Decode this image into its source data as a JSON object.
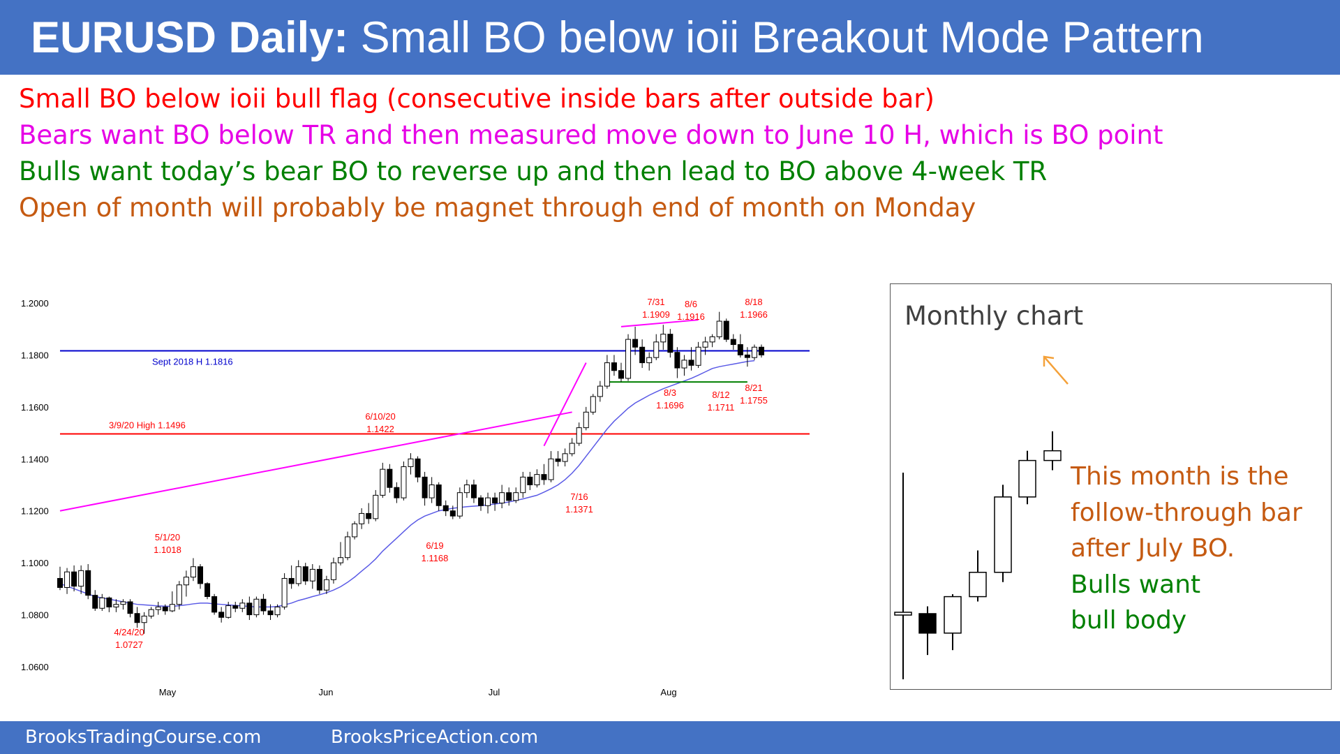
{
  "title": {
    "bold": "EURUSD Daily:",
    "rest": " Small BO below ioii Breakout Mode Pattern"
  },
  "bullets": [
    {
      "text": "Small BO below ioii bull flag (consecutive inside bars after outside bar)",
      "color": "#ff0000"
    },
    {
      "text": "Bears want BO below TR and then measured move down to June 10 H, which is BO point",
      "color": "#e600e6"
    },
    {
      "text": "Bulls want today’s bear BO to reverse up and then lead to BO above 4-week TR",
      "color": "#008000"
    },
    {
      "text": "Open of month will probably be magnet through end of month on Monday",
      "color": "#c55a11"
    }
  ],
  "footer": {
    "left": "BrooksTradingCourse.com",
    "right": "BrooksPriceAction.com"
  },
  "chart_data": [
    {
      "type": "candlestick",
      "name": "daily",
      "ylim": [
        1.055,
        1.204
      ],
      "y_ticks": [
        "1.2000",
        "1.1800",
        "1.1600",
        "1.1400",
        "1.1200",
        "1.1000",
        "1.0800",
        "1.0600"
      ],
      "x_ticks": [
        "May",
        "Jun",
        "Jul",
        "Aug"
      ],
      "hlines": [
        {
          "label": "Sept 2018 H 1.1816",
          "value": 1.1816,
          "color": "#0000cc"
        },
        {
          "label": "3/9/20 High 1.1496",
          "value": 1.1496,
          "color": "#ff0000"
        }
      ],
      "annotations": [
        {
          "date": "4/24/20",
          "value": "1.0727"
        },
        {
          "date": "5/1/20",
          "value": "1.1018"
        },
        {
          "date": "6/10/20",
          "value": "1.1422"
        },
        {
          "date": "6/19",
          "value": "1.1168"
        },
        {
          "date": "7/16",
          "value": "1.1371"
        },
        {
          "date": "7/31",
          "value": "1.1909"
        },
        {
          "date": "8/3",
          "value": "1.1696"
        },
        {
          "date": "8/6",
          "value": "1.1916"
        },
        {
          "date": "8/12",
          "value": "1.1711"
        },
        {
          "date": "8/18",
          "value": "1.1966"
        },
        {
          "date": "8/21",
          "value": "1.1755"
        }
      ],
      "candles": [
        [
          1.094,
          1.0985,
          1.0895,
          1.0905
        ],
        [
          1.0905,
          1.098,
          1.088,
          1.0965
        ],
        [
          1.0965,
          1.099,
          1.089,
          1.091
        ],
        [
          1.091,
          1.099,
          1.088,
          1.097
        ],
        [
          1.097,
          1.0995,
          1.086,
          1.0875
        ],
        [
          1.0875,
          1.0895,
          1.0815,
          1.0825
        ],
        [
          1.0825,
          1.088,
          1.0815,
          1.0865
        ],
        [
          1.0865,
          1.087,
          1.081,
          1.083
        ],
        [
          1.083,
          1.086,
          1.081,
          1.084
        ],
        [
          1.084,
          1.086,
          1.082,
          1.085
        ],
        [
          1.085,
          1.086,
          1.079,
          1.0805
        ],
        [
          1.0805,
          1.083,
          1.075,
          1.077
        ],
        [
          1.077,
          1.081,
          1.0727,
          1.0795
        ],
        [
          1.0795,
          1.083,
          1.0785,
          1.082
        ],
        [
          1.082,
          1.085,
          1.08,
          1.083
        ],
        [
          1.083,
          1.084,
          1.08,
          1.0815
        ],
        [
          1.0815,
          1.089,
          1.081,
          1.084
        ],
        [
          1.084,
          1.093,
          1.082,
          1.0915
        ],
        [
          1.0915,
          1.097,
          1.087,
          1.0945
        ],
        [
          1.0945,
          1.1018,
          1.093,
          1.0985
        ],
        [
          1.0985,
          1.0995,
          1.09,
          1.092
        ],
        [
          1.092,
          1.0925,
          1.086,
          1.087
        ],
        [
          1.087,
          1.088,
          1.08,
          1.081
        ],
        [
          1.081,
          1.083,
          1.077,
          1.079
        ],
        [
          1.079,
          1.085,
          1.0785,
          1.0835
        ],
        [
          1.0835,
          1.085,
          1.081,
          1.0825
        ],
        [
          1.0825,
          1.086,
          1.081,
          1.0845
        ],
        [
          1.0845,
          1.087,
          1.078,
          1.08
        ],
        [
          1.08,
          1.087,
          1.079,
          1.086
        ],
        [
          1.086,
          1.088,
          1.08,
          1.0815
        ],
        [
          1.0815,
          1.084,
          1.078,
          1.08
        ],
        [
          1.08,
          1.084,
          1.079,
          1.083
        ],
        [
          1.083,
          1.096,
          1.082,
          1.094
        ],
        [
          1.094,
          1.099,
          1.09,
          1.092
        ],
        [
          1.092,
          1.101,
          1.091,
          1.0985
        ],
        [
          1.0985,
          1.1,
          1.0915,
          1.093
        ],
        [
          1.093,
          1.0995,
          1.09,
          1.0975
        ],
        [
          1.0975,
          1.099,
          1.088,
          1.0895
        ],
        [
          1.0895,
          1.095,
          1.088,
          1.0935
        ],
        [
          1.0935,
          1.102,
          1.092,
          1.1
        ],
        [
          1.1,
          1.108,
          1.099,
          1.102
        ],
        [
          1.102,
          1.112,
          1.101,
          1.11
        ],
        [
          1.11,
          1.116,
          1.109,
          1.115
        ],
        [
          1.115,
          1.121,
          1.113,
          1.119
        ],
        [
          1.119,
          1.123,
          1.115,
          1.117
        ],
        [
          1.117,
          1.128,
          1.116,
          1.126
        ],
        [
          1.126,
          1.1385,
          1.125,
          1.136
        ],
        [
          1.136,
          1.138,
          1.127,
          1.129
        ],
        [
          1.129,
          1.131,
          1.123,
          1.125
        ],
        [
          1.125,
          1.139,
          1.124,
          1.137
        ],
        [
          1.137,
          1.1422,
          1.134,
          1.14
        ],
        [
          1.14,
          1.141,
          1.131,
          1.133
        ],
        [
          1.133,
          1.135,
          1.122,
          1.125
        ],
        [
          1.125,
          1.133,
          1.123,
          1.13
        ],
        [
          1.13,
          1.131,
          1.12,
          1.122
        ],
        [
          1.122,
          1.124,
          1.118,
          1.12
        ],
        [
          1.12,
          1.122,
          1.1168,
          1.118
        ],
        [
          1.118,
          1.129,
          1.117,
          1.127
        ],
        [
          1.127,
          1.132,
          1.125,
          1.13
        ],
        [
          1.13,
          1.132,
          1.123,
          1.125
        ],
        [
          1.125,
          1.126,
          1.12,
          1.122
        ],
        [
          1.122,
          1.127,
          1.119,
          1.125
        ],
        [
          1.125,
          1.127,
          1.12,
          1.123
        ],
        [
          1.123,
          1.13,
          1.121,
          1.127
        ],
        [
          1.127,
          1.129,
          1.122,
          1.124
        ],
        [
          1.124,
          1.129,
          1.123,
          1.127
        ],
        [
          1.127,
          1.135,
          1.125,
          1.133
        ],
        [
          1.133,
          1.135,
          1.128,
          1.13
        ],
        [
          1.13,
          1.136,
          1.129,
          1.134
        ],
        [
          1.134,
          1.138,
          1.13,
          1.132
        ],
        [
          1.132,
          1.143,
          1.131,
          1.14
        ],
        [
          1.14,
          1.143,
          1.1371,
          1.139
        ],
        [
          1.139,
          1.144,
          1.1371,
          1.142
        ],
        [
          1.142,
          1.148,
          1.141,
          1.146
        ],
        [
          1.146,
          1.154,
          1.145,
          1.152
        ],
        [
          1.152,
          1.16,
          1.151,
          1.158
        ],
        [
          1.158,
          1.165,
          1.157,
          1.164
        ],
        [
          1.164,
          1.17,
          1.162,
          1.168
        ],
        [
          1.168,
          1.18,
          1.167,
          1.177
        ],
        [
          1.177,
          1.18,
          1.172,
          1.174
        ],
        [
          1.174,
          1.177,
          1.1696,
          1.171
        ],
        [
          1.171,
          1.188,
          1.17,
          1.186
        ],
        [
          1.186,
          1.1909,
          1.18,
          1.183
        ],
        [
          1.183,
          1.186,
          1.175,
          1.177
        ],
        [
          1.177,
          1.181,
          1.174,
          1.179
        ],
        [
          1.179,
          1.188,
          1.178,
          1.185
        ],
        [
          1.185,
          1.1916,
          1.182,
          1.188
        ],
        [
          1.188,
          1.19,
          1.179,
          1.181
        ],
        [
          1.181,
          1.183,
          1.1711,
          1.175
        ],
        [
          1.175,
          1.18,
          1.172,
          1.178
        ],
        [
          1.178,
          1.183,
          1.174,
          1.176
        ],
        [
          1.176,
          1.185,
          1.175,
          1.183
        ],
        [
          1.183,
          1.187,
          1.18,
          1.185
        ],
        [
          1.185,
          1.188,
          1.183,
          1.187
        ],
        [
          1.187,
          1.1966,
          1.186,
          1.193
        ],
        [
          1.193,
          1.194,
          1.185,
          1.186
        ],
        [
          1.186,
          1.188,
          1.182,
          1.184
        ],
        [
          1.184,
          1.188,
          1.179,
          1.18
        ],
        [
          1.18,
          1.183,
          1.1755,
          1.179
        ],
        [
          1.179,
          1.184,
          1.178,
          1.183
        ],
        [
          1.183,
          1.184,
          1.179,
          1.18
        ]
      ],
      "trendlines": [
        {
          "color": "#ff00ff",
          "points": [
            [
              0,
              1.12
            ],
            [
              73,
              1.158
            ]
          ]
        },
        {
          "color": "#ff00ff",
          "points": [
            [
              69,
              1.145
            ],
            [
              75,
              1.177
            ]
          ]
        },
        {
          "color": "#ff00ff",
          "points": [
            [
              80,
              1.1909
            ],
            [
              91,
              1.1935
            ]
          ]
        },
        {
          "color": "#008000",
          "points": [
            [
              78,
              1.1696
            ],
            [
              98,
              1.1696
            ]
          ]
        }
      ],
      "ma": [
        1.092,
        1.091,
        1.09,
        1.089,
        1.088,
        1.087,
        1.0865,
        1.086,
        1.0855,
        1.085,
        1.0845,
        1.084,
        1.0838,
        1.0836,
        1.0834,
        1.0833,
        1.0832,
        1.0835,
        1.0838,
        1.0842,
        1.0845,
        1.0845,
        1.0842,
        1.084,
        1.0838,
        1.0836,
        1.0834,
        1.0832,
        1.083,
        1.083,
        1.083,
        1.0832,
        1.0838,
        1.0845,
        1.0855,
        1.0862,
        1.087,
        1.0877,
        1.0885,
        1.0895,
        1.0908,
        1.0925,
        1.0945,
        1.0968,
        1.099,
        1.1015,
        1.1045,
        1.107,
        1.1095,
        1.112,
        1.1145,
        1.1165,
        1.118,
        1.119,
        1.12,
        1.1205,
        1.121,
        1.1213,
        1.1216,
        1.1218,
        1.122,
        1.1223,
        1.1226,
        1.123,
        1.1234,
        1.124,
        1.1246,
        1.1253,
        1.126,
        1.1272,
        1.1285,
        1.13,
        1.132,
        1.1345,
        1.1375,
        1.141,
        1.1445,
        1.148,
        1.1515,
        1.1545,
        1.157,
        1.1595,
        1.1615,
        1.163,
        1.1645,
        1.1658,
        1.167,
        1.168,
        1.169,
        1.17,
        1.171,
        1.1722,
        1.1735,
        1.1748,
        1.1755,
        1.176,
        1.1765,
        1.177,
        1.1775,
        1.1778
      ]
    },
    {
      "type": "candlestick",
      "name": "monthly",
      "title": "Monthly chart",
      "candles": [
        [
          1.092,
          1.15,
          1.065,
          1.092
        ],
        [
          1.092,
          1.095,
          1.075,
          1.084
        ],
        [
          1.084,
          1.1,
          1.077,
          1.099
        ],
        [
          1.099,
          1.118,
          1.097,
          1.109
        ],
        [
          1.109,
          1.145,
          1.105,
          1.14
        ],
        [
          1.14,
          1.159,
          1.137,
          1.155
        ],
        [
          1.155,
          1.167,
          1.151,
          1.159
        ]
      ]
    }
  ],
  "monthly_notes": [
    {
      "text": "This month is the",
      "color": "#c55a11"
    },
    {
      "text": "follow-through bar",
      "color": "#c55a11"
    },
    {
      "text": "after July BO.",
      "color": "#c55a11"
    },
    {
      "text": "Bulls want",
      "color": "#008000"
    },
    {
      "text": "bull body",
      "color": "#008000"
    }
  ]
}
